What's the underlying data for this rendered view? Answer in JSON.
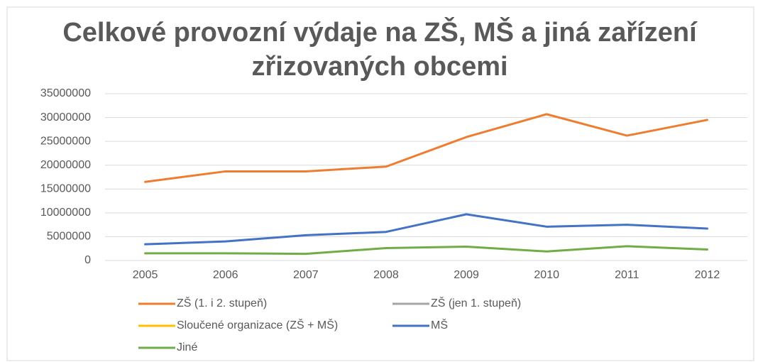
{
  "chart_data": {
    "type": "line",
    "title": "Celkové provozní výdaje  na ZŠ, MŠ a jiná zařízení zřizovaných obcemi",
    "categories": [
      "2005",
      "2006",
      "2007",
      "2008",
      "2009",
      "2010",
      "2011",
      "2012"
    ],
    "series": [
      {
        "name": "ZŠ (1. i 2. stupeň)",
        "color": "#ed7d31",
        "values": [
          16500000,
          18700000,
          18700000,
          19700000,
          25900000,
          30700000,
          26200000,
          29500000
        ]
      },
      {
        "name": "ZŠ (jen 1. stupeň)",
        "color": "#a5a5a5",
        "values": [
          null,
          null,
          null,
          null,
          null,
          null,
          null,
          null
        ]
      },
      {
        "name": "Sloučené organizace (ZŠ + MŠ)",
        "color": "#ffc000",
        "values": [
          null,
          null,
          null,
          null,
          null,
          null,
          null,
          null
        ]
      },
      {
        "name": "MŠ",
        "color": "#4472c4",
        "values": [
          3400000,
          4000000,
          5300000,
          6000000,
          9700000,
          7100000,
          7500000,
          6700000
        ]
      },
      {
        "name": "Jiné",
        "color": "#70ad47",
        "values": [
          1500000,
          1500000,
          1400000,
          2600000,
          2900000,
          1900000,
          3000000,
          2300000
        ]
      }
    ],
    "ylim": [
      0,
      35000000
    ],
    "yticks": [
      0,
      5000000,
      10000000,
      15000000,
      20000000,
      25000000,
      30000000,
      35000000
    ],
    "grid": true
  }
}
